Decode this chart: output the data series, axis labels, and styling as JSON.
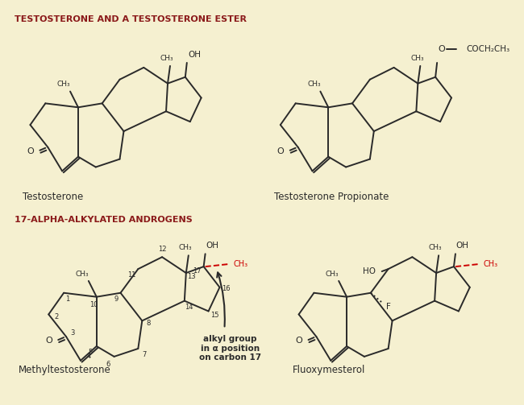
{
  "bg_color": "#f5f0d0",
  "title1": "TESTOSTERONE AND A TESTOSTERONE ESTER",
  "title2": "17-ALPHA-ALKYLATED ANDROGENS",
  "title_color": "#8b1a1a",
  "line_color": "#2a2a2a",
  "red_color": "#cc0000",
  "text_color": "#1a1a1a",
  "label_testosterone": "Testosterone",
  "label_tp": "Testosterone Propionate",
  "label_mt": "Methyltestosterone",
  "label_fluoxy": "Fluoxymesterol"
}
